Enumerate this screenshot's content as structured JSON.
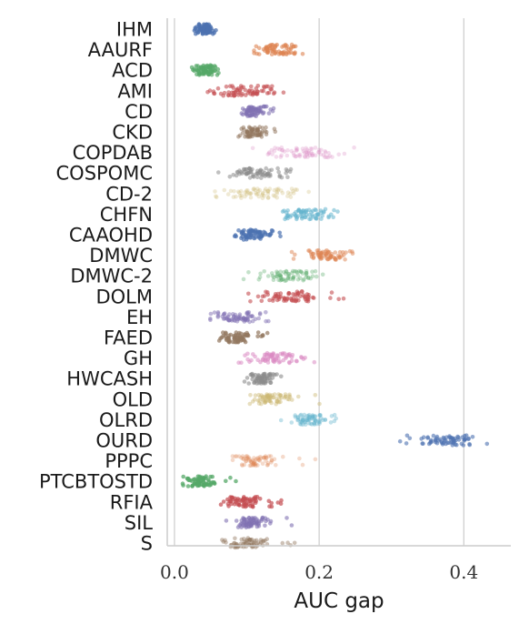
{
  "chart_data": {
    "type": "scatter",
    "subtype": "strip",
    "xlabel": "AUC gap",
    "ylabel": "",
    "xlim": [
      -0.01,
      0.465
    ],
    "xticks": [
      0.0,
      0.2,
      0.4
    ],
    "xtick_labels": [
      "0.0",
      "0.2",
      "0.4"
    ],
    "grid": "vertical",
    "point_opacity": 0.45,
    "categories": [
      {
        "name": "IHM",
        "color": "#4c72b0",
        "min": 0.02,
        "max": 0.06,
        "center": 0.04,
        "alpha": 0.75
      },
      {
        "name": "AAURF",
        "color": "#dd8452",
        "min": 0.1,
        "max": 0.18,
        "center": 0.14,
        "alpha": 0.6
      },
      {
        "name": "ACD",
        "color": "#55a868",
        "min": 0.02,
        "max": 0.07,
        "center": 0.045,
        "alpha": 0.7
      },
      {
        "name": "AMI",
        "color": "#c44e52",
        "min": 0.045,
        "max": 0.16,
        "center": 0.1,
        "alpha": 0.6
      },
      {
        "name": "CD",
        "color": "#8172b3",
        "min": 0.085,
        "max": 0.14,
        "center": 0.11,
        "alpha": 0.6
      },
      {
        "name": "CKD",
        "color": "#937860",
        "min": 0.085,
        "max": 0.15,
        "center": 0.11,
        "alpha": 0.55
      },
      {
        "name": "COPDAB",
        "color": "#da8bc3",
        "min": 0.095,
        "max": 0.25,
        "center": 0.17,
        "alpha": 0.3
      },
      {
        "name": "COSPOMC",
        "color": "#8c8c8c",
        "min": 0.06,
        "max": 0.17,
        "center": 0.11,
        "alpha": 0.55
      },
      {
        "name": "CD-2",
        "color": "#ccb974",
        "min": 0.05,
        "max": 0.19,
        "center": 0.12,
        "alpha": 0.3
      },
      {
        "name": "CHFN",
        "color": "#64b5cd",
        "min": 0.12,
        "max": 0.235,
        "center": 0.18,
        "alpha": 0.55
      },
      {
        "name": "CAAOHD",
        "color": "#4c72b0",
        "min": 0.08,
        "max": 0.15,
        "center": 0.11,
        "alpha": 0.7
      },
      {
        "name": "DMWC",
        "color": "#dd8452",
        "min": 0.16,
        "max": 0.25,
        "center": 0.21,
        "alpha": 0.5
      },
      {
        "name": "DMWC-2",
        "color": "#55a868",
        "min": 0.095,
        "max": 0.21,
        "center": 0.16,
        "alpha": 0.35
      },
      {
        "name": "DOLM",
        "color": "#c44e52",
        "min": 0.1,
        "max": 0.24,
        "center": 0.16,
        "alpha": 0.6
      },
      {
        "name": "EH",
        "color": "#8172b3",
        "min": 0.045,
        "max": 0.14,
        "center": 0.09,
        "alpha": 0.5
      },
      {
        "name": "FAED",
        "color": "#937860",
        "min": 0.055,
        "max": 0.13,
        "center": 0.085,
        "alpha": 0.7
      },
      {
        "name": "GH",
        "color": "#da8bc3",
        "min": 0.085,
        "max": 0.195,
        "center": 0.14,
        "alpha": 0.55
      },
      {
        "name": "HWCASH",
        "color": "#8c8c8c",
        "min": 0.095,
        "max": 0.155,
        "center": 0.12,
        "alpha": 0.6
      },
      {
        "name": "OLD",
        "color": "#ccb974",
        "min": 0.1,
        "max": 0.205,
        "center": 0.14,
        "alpha": 0.45
      },
      {
        "name": "OLRD",
        "color": "#64b5cd",
        "min": 0.12,
        "max": 0.225,
        "center": 0.19,
        "alpha": 0.4
      },
      {
        "name": "OURD",
        "color": "#4c72b0",
        "min": 0.29,
        "max": 0.44,
        "center": 0.375,
        "alpha": 0.6
      },
      {
        "name": "PPPC",
        "color": "#dd8452",
        "min": 0.075,
        "max": 0.2,
        "center": 0.11,
        "alpha": 0.3
      },
      {
        "name": "PTCBTOSTD",
        "color": "#55a868",
        "min": 0.01,
        "max": 0.085,
        "center": 0.035,
        "alpha": 0.75
      },
      {
        "name": "RFIA",
        "color": "#c44e52",
        "min": 0.06,
        "max": 0.15,
        "center": 0.095,
        "alpha": 0.7
      },
      {
        "name": "SIL",
        "color": "#8172b3",
        "min": 0.07,
        "max": 0.165,
        "center": 0.105,
        "alpha": 0.6
      },
      {
        "name": "S",
        "color": "#937860",
        "min": 0.065,
        "max": 0.17,
        "center": 0.1,
        "alpha": 0.45
      }
    ]
  }
}
